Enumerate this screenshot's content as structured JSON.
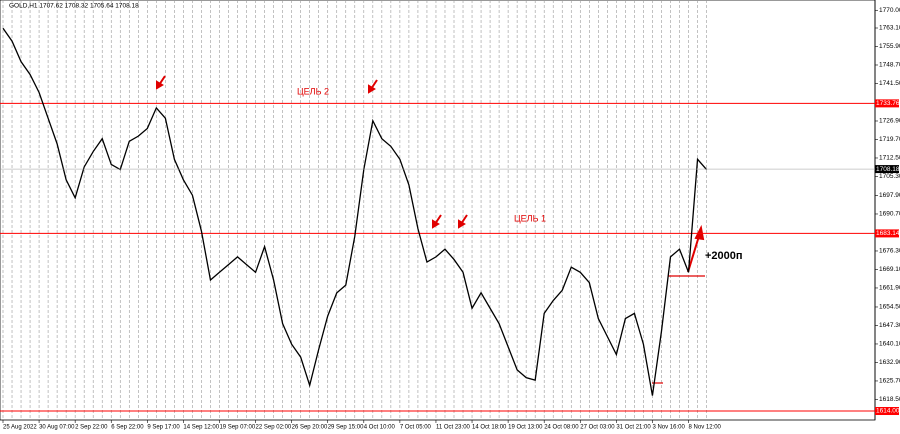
{
  "chart_data": {
    "type": "line",
    "title": "GOLD,H1  1707.62 1708.32 1705.64 1708.18",
    "categories": [
      "25 Aug 2022",
      null,
      null,
      null,
      "30 Aug 07:00",
      null,
      null,
      null,
      "2 Sep 22:00",
      null,
      null,
      null,
      "6 Sep 22:00",
      null,
      null,
      null,
      "9 Sep 17:00",
      null,
      null,
      null,
      "14 Sep 12:00",
      null,
      null,
      null,
      "19 Sep 07:00",
      null,
      null,
      null,
      "22 Sep 02:00",
      null,
      null,
      null,
      "26 Sep 20:00",
      null,
      null,
      null,
      "29 Sep 15:00",
      null,
      null,
      null,
      "4 Oct 10:00",
      null,
      null,
      null,
      "7 Oct 05:00",
      null,
      null,
      null,
      "11 Oct 23:00",
      null,
      null,
      null,
      "14 Oct 18:00",
      null,
      null,
      null,
      "19 Oct 13:00",
      null,
      null,
      null,
      "24 Oct 08:00",
      null,
      null,
      null,
      "27 Oct 03:00",
      null,
      null,
      null,
      "31 Oct 21:00",
      null,
      null,
      null,
      "3 Nov 16:00",
      null,
      null,
      null,
      "8 Nov 12:00",
      null,
      null
    ],
    "series": [
      {
        "name": "GOLD,H1",
        "color": "#000000",
        "values": [
          1763,
          1758,
          1750,
          1745,
          1738,
          1728,
          1718,
          1704,
          1697,
          1709,
          1715,
          1720,
          1710,
          1708,
          1719,
          1721,
          1724,
          1732,
          1728,
          1712,
          1704,
          1698,
          1684,
          1665,
          1668,
          1671,
          1674,
          1671,
          1668,
          1678,
          1665,
          1648,
          1640,
          1635,
          1624,
          1638,
          1651,
          1660,
          1663,
          1682,
          1708,
          1727,
          1720,
          1717,
          1712,
          1702,
          1685,
          1672,
          1674,
          1677,
          1673,
          1668,
          1654,
          1660,
          1654,
          1648,
          1639,
          1630,
          1627,
          1626,
          1652,
          1657,
          1661,
          1670,
          1668,
          1664,
          1650,
          1643,
          1636,
          1650,
          1652,
          1640,
          1620,
          1645,
          1674,
          1677,
          1668,
          1712,
          1708
        ]
      }
    ],
    "ylim": [
      1610.5,
      1774
    ],
    "yticks": [
      {
        "value": 1770,
        "label": "1770.00"
      },
      {
        "value": 1763.1,
        "label": "1763.10"
      },
      {
        "value": 1755.9,
        "label": "1755.90"
      },
      {
        "value": 1748.7,
        "label": "1748.70"
      },
      {
        "value": 1741.5,
        "label": "1741.50"
      },
      {
        "value": 1726.9,
        "label": "1726.90"
      },
      {
        "value": 1719.7,
        "label": "1719.70"
      },
      {
        "value": 1712.5,
        "label": "1712.50"
      },
      {
        "value": 1705.3,
        "label": "1705.30"
      },
      {
        "value": 1697.9,
        "label": "1697.90"
      },
      {
        "value": 1690.7,
        "label": "1690.70"
      },
      {
        "value": 1676.3,
        "label": "1676.30"
      },
      {
        "value": 1669.1,
        "label": "1669.10"
      },
      {
        "value": 1661.9,
        "label": "1661.90"
      },
      {
        "value": 1654.5,
        "label": "1654.50"
      },
      {
        "value": 1647.3,
        "label": "1647.30"
      },
      {
        "value": 1640.1,
        "label": "1640.10"
      },
      {
        "value": 1632.9,
        "label": "1632.90"
      },
      {
        "value": 1625.7,
        "label": "1625.70"
      },
      {
        "value": 1618.5,
        "label": "1618.50"
      }
    ],
    "levels": [
      1733.76,
      1683.14,
      {
        "value": 1614,
        "label": "1614.00"
      }
    ],
    "level_color": "#ff0000",
    "last_price": 1708.18,
    "annotations": [
      "ЦЕЛЬ 2",
      "ЦЕЛЬ 1",
      "+2000п"
    ],
    "grid": true
  }
}
